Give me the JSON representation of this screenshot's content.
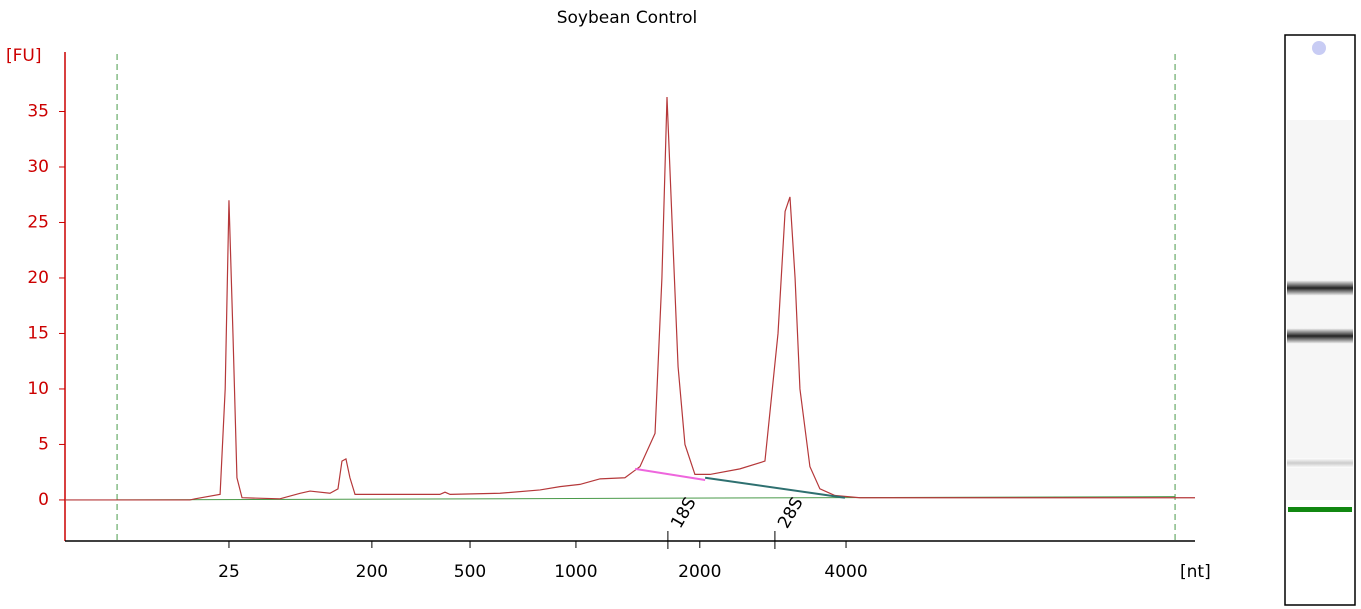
{
  "chart_data": {
    "type": "line",
    "title": "Soybean Control",
    "y_label": "[FU]",
    "x_label": "[nt]",
    "xlim": [
      20,
      71
    ],
    "ylim": [
      -3.7,
      40
    ],
    "xticks": [
      {
        "value": 27.4,
        "label": "25"
      },
      {
        "value": 33.85,
        "label": "200"
      },
      {
        "value": 38.28,
        "label": "500"
      },
      {
        "value": 43.06,
        "label": "1000"
      },
      {
        "value": 48.65,
        "label": "2000"
      },
      {
        "value": 55.25,
        "label": "4000"
      }
    ],
    "yticks": [
      0,
      5,
      10,
      15,
      20,
      25,
      30,
      35
    ],
    "x_markers": [
      22.35,
      70.1
    ],
    "baseline": {
      "x": [
        22.35,
        70.1
      ],
      "y": [
        0,
        0.3
      ],
      "color": "#4a9a4a"
    },
    "fragments": [
      {
        "label": "18S",
        "color": "#ee66dd",
        "x": [
          45.73,
          48.89
        ],
        "y": [
          2.8,
          1.8
        ],
        "peak": 47.21
      },
      {
        "label": "28S",
        "color": "#2e7070",
        "x": [
          48.89,
          55.2
        ],
        "y": [
          2.0,
          0.2
        ],
        "peak": 52.04
      }
    ],
    "series": [
      {
        "color": "#b5383a",
        "x": [
          20,
          25.64,
          25.87,
          27.0,
          27.23,
          27.4,
          27.58,
          27.76,
          27.99,
          29.7,
          30.61,
          31.06,
          31.96,
          32.32,
          32.5,
          32.68,
          32.86,
          33.09,
          35.12,
          36.92,
          37.15,
          37.38,
          39.63,
          41.44,
          42.34,
          43.24,
          44.15,
          45.27,
          45.95,
          46.63,
          46.94,
          47.17,
          47.4,
          47.67,
          47.98,
          48.43,
          49.11,
          50.46,
          51.59,
          52.18,
          52.5,
          52.72,
          52.95,
          53.17,
          53.62,
          54.07,
          54.75,
          55.88,
          62.2,
          68.97,
          71.0
        ],
        "values": [
          0,
          0,
          0.1,
          0.5,
          10,
          27,
          15,
          2,
          0.2,
          0.1,
          0.6,
          0.8,
          0.6,
          1,
          3.5,
          3.7,
          2,
          0.5,
          0.5,
          0.5,
          0.7,
          0.5,
          0.6,
          0.9,
          1.2,
          1.4,
          1.9,
          2,
          3,
          6,
          20,
          36.3,
          25,
          12,
          5,
          2.3,
          2.3,
          2.8,
          3.5,
          15,
          26,
          27.3,
          20,
          10,
          3,
          1,
          0.4,
          0.2,
          0.2,
          0.2,
          0.2
        ]
      }
    ]
  }
}
